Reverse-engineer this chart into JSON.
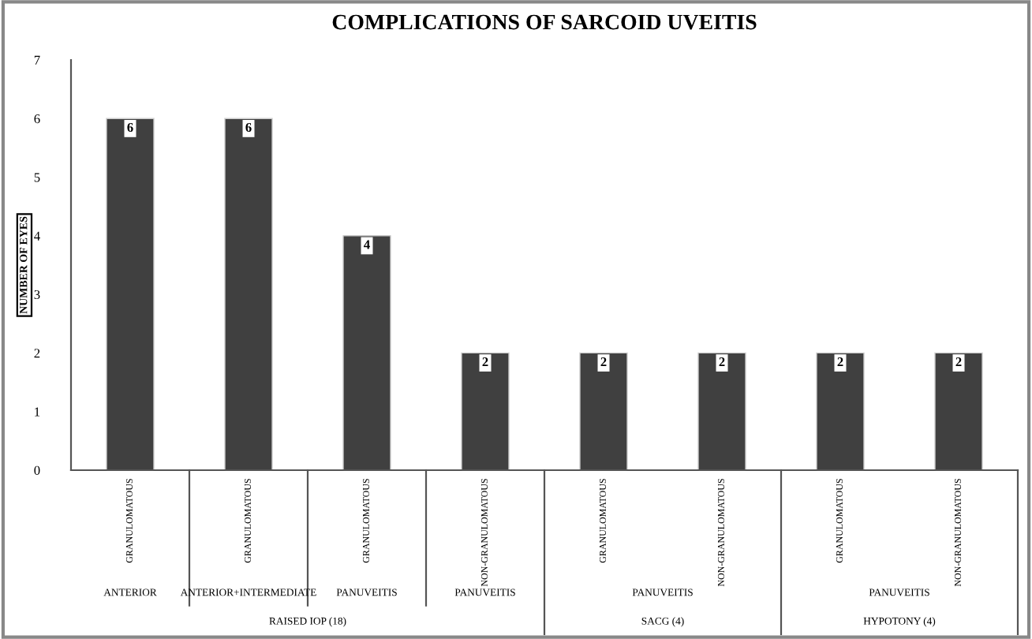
{
  "chart_data": {
    "type": "bar",
    "title": "COMPLICATIONS OF SARCOID UVEITIS",
    "ylabel": "NUMBER OF EYES",
    "categories": [
      "GRANULOMATOUS",
      "GRANULOMATOUS",
      "GRANULOMATOUS",
      "NON-GRANULOMATOUS",
      "GRANULOMATOUS",
      "NON-GRANULOMATOUS",
      "GRANULOMATOUS",
      "NON-GRANULOMATOUS"
    ],
    "values": [
      6,
      6,
      4,
      2,
      2,
      2,
      2,
      2
    ],
    "color": "#404040",
    "annotations": [
      "ANTERIOR",
      "ANTERIOR+INTERMEDIATE",
      "PANUVEITIS",
      "PANUVEITIS",
      "PANUVEITIS",
      "PANUVEITIS",
      "RAISED IOP (18)",
      "SACG (4)",
      "HYPOTONY (4)"
    ],
    "ylim": [
      0,
      7
    ],
    "yticks": [
      0,
      1,
      2,
      3,
      4,
      5,
      6,
      7
    ],
    "data_labels": true,
    "grid": false
  }
}
